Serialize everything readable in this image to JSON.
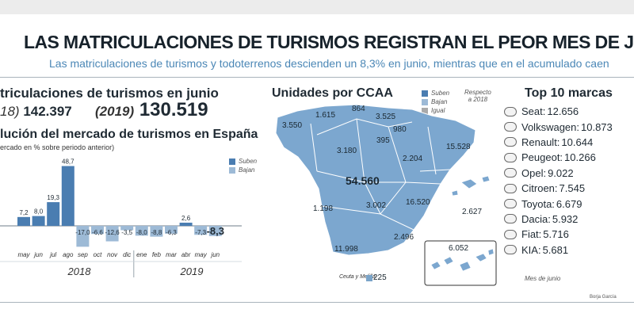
{
  "header": {
    "title": "LAS MATRICULACIONES DE TURISMOS REGISTRAN EL PEOR MES DE JUNIO EN TRI",
    "subtitle": "Las matriculaciones de turismos y todoterrenos descienden un 8,3% en junio, mientras que en el acumulado caen"
  },
  "registrations": {
    "title": "triculaciones de turismos en junio",
    "year_2018": "18)",
    "value_2018": "142.397",
    "year_2019": "(2019)",
    "value_2019": "130.519"
  },
  "evolution": {
    "title": "lución del mercado de turismos en España",
    "subtitle": "ercado en % sobre periodo anterior)",
    "legend": [
      {
        "label": "Suben",
        "color": "#4a7db1"
      },
      {
        "label": "Bajan",
        "color": "#9dbad6"
      }
    ]
  },
  "colors": {
    "bar_up": "#4a7db1",
    "bar_down": "#9dbad6",
    "map_fill": "#7ca7cf",
    "map_border": "#ffffff",
    "text_blue": "#4b87b6"
  },
  "chart_data": {
    "type": "bar",
    "categories": [
      "may",
      "jun",
      "jul",
      "ago",
      "sep",
      "oct",
      "nov",
      "dic",
      "ene",
      "feb",
      "mar",
      "abr",
      "may",
      "jun"
    ],
    "values": [
      7.2,
      8.0,
      19.3,
      48.7,
      -17.0,
      -6.6,
      -12.6,
      -3.5,
      -8.0,
      -8.8,
      -6.3,
      2.6,
      -7.3,
      -8.3
    ],
    "labels": [
      "7,2",
      "8,0",
      "19,3",
      "48,7",
      "-17,0",
      "-6,6",
      "-12,6",
      "-3,5",
      "-8,0",
      "-8,8",
      "-6,3",
      "2,6",
      "-7,3",
      "-8,3"
    ],
    "year_labels": [
      "2018",
      "2019"
    ],
    "ylim": [
      -20,
      50
    ]
  },
  "map": {
    "title": "Unidades por CCAA",
    "legend": [
      {
        "label": "Suben",
        "color": "#4a7db1"
      },
      {
        "label": "Bajan",
        "color": "#9dbad6"
      },
      {
        "label": "Igual",
        "color": "#aaaaaa"
      }
    ],
    "note": "Respecto\na 2018",
    "regions": [
      {
        "name": "Galicia",
        "value": "3.550"
      },
      {
        "name": "Asturias",
        "value": "1.615"
      },
      {
        "name": "Cantabria",
        "value": "864"
      },
      {
        "name": "País Vasco",
        "value": "3.525"
      },
      {
        "name": "Navarra",
        "value": "980"
      },
      {
        "name": "La Rioja",
        "value": "395"
      },
      {
        "name": "Castilla y León",
        "value": "3.180"
      },
      {
        "name": "Aragón",
        "value": "2.204"
      },
      {
        "name": "Cataluña",
        "value": "15.528"
      },
      {
        "name": "Madrid",
        "value": "54.560"
      },
      {
        "name": "Extremadura",
        "value": "1.198"
      },
      {
        "name": "Castilla-La Mancha",
        "value": "3.002"
      },
      {
        "name": "C. Valenciana",
        "value": "16.520"
      },
      {
        "name": "Baleares",
        "value": "2.627"
      },
      {
        "name": "Murcia",
        "value": "2.496"
      },
      {
        "name": "Andalucía",
        "value": "11.998"
      },
      {
        "name": "Canarias",
        "value": "6.052"
      }
    ],
    "ceuta_label": "Ceuta y Melilla",
    "ceuta_value": "225"
  },
  "brands": {
    "title": "Top 10 marcas",
    "items": [
      {
        "name": "Seat:",
        "value": "12.656",
        "icon": "seat-logo-icon"
      },
      {
        "name": "Volkswagen:",
        "value": "10.873",
        "icon": "volkswagen-logo-icon"
      },
      {
        "name": "Renault:",
        "value": "10.644",
        "icon": "renault-logo-icon"
      },
      {
        "name": "Peugeot:",
        "value": "10.266",
        "icon": "peugeot-logo-icon"
      },
      {
        "name": "Opel:",
        "value": "9.022",
        "icon": "opel-logo-icon"
      },
      {
        "name": "Citroen:",
        "value": "7.545",
        "icon": "citroen-logo-icon"
      },
      {
        "name": "Toyota:",
        "value": "6.679",
        "icon": "toyota-logo-icon"
      },
      {
        "name": "Dacia:",
        "value": "5.932",
        "icon": "dacia-logo-icon"
      },
      {
        "name": "Fiat:",
        "value": "5.716",
        "icon": "fiat-logo-icon"
      },
      {
        "name": "KIA:",
        "value": "5.681",
        "icon": "kia-logo-icon"
      }
    ],
    "note": "Mes de junio"
  },
  "credit": "Borja García"
}
